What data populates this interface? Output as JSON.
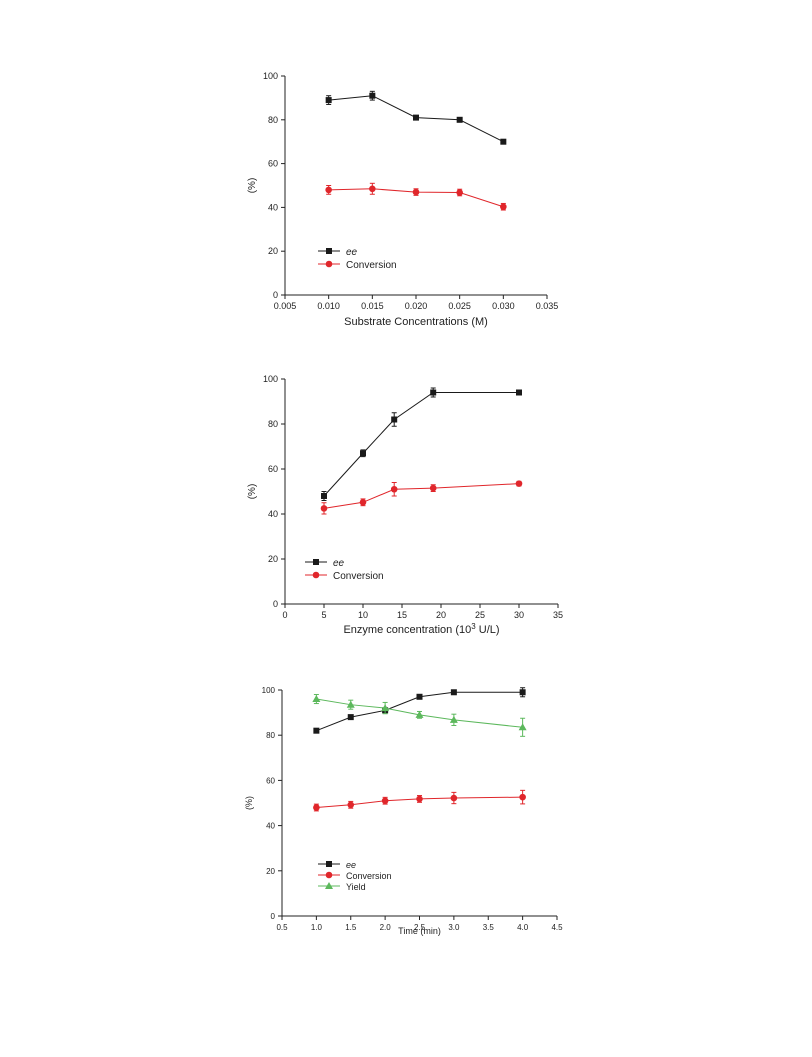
{
  "chart_data": [
    {
      "type": "line",
      "xlabel": "Substrate Concentrations (M)",
      "ylabel": "(%)",
      "xlim": [
        0.005,
        0.035
      ],
      "ylim": [
        0,
        100
      ],
      "xticks": [
        "0.005",
        "0.010",
        "0.015",
        "0.020",
        "0.025",
        "0.030",
        "0.035"
      ],
      "yticks": [
        "0",
        "20",
        "40",
        "60",
        "80",
        "100"
      ],
      "legend_position": "lower-left",
      "grid": false,
      "x": [
        0.01,
        0.015,
        0.02,
        0.025,
        0.03
      ],
      "series": [
        {
          "name": "ee",
          "color": "#1a1a1a",
          "marker": "square",
          "values": [
            89,
            91,
            81,
            80,
            70
          ],
          "errors": [
            2,
            2,
            0.5,
            0.5,
            0.5
          ]
        },
        {
          "name": "Conversion",
          "color": "#e0262b",
          "marker": "circle",
          "values": [
            48,
            48.5,
            47,
            46.8,
            40.3
          ],
          "errors": [
            2,
            2.5,
            1.5,
            1.5,
            1.5
          ]
        }
      ]
    },
    {
      "type": "line",
      "xlabel": "Enzyme concentration (10",
      "xlabel_sup": "3",
      "xlabel_tail": " U/L)",
      "ylabel": "(%)",
      "xlim": [
        0,
        35
      ],
      "ylim": [
        0,
        100
      ],
      "xticks": [
        "0",
        "5",
        "10",
        "15",
        "20",
        "25",
        "30",
        "35"
      ],
      "yticks": [
        "0",
        "20",
        "40",
        "60",
        "80",
        "100"
      ],
      "legend_position": "lower-left",
      "grid": false,
      "x": [
        5,
        10,
        14,
        19,
        30
      ],
      "series": [
        {
          "name": "ee",
          "color": "#1a1a1a",
          "marker": "square",
          "values": [
            48,
            67,
            82,
            94,
            94
          ],
          "errors": [
            2,
            1.5,
            3,
            2,
            0.5
          ]
        },
        {
          "name": "Conversion",
          "color": "#e0262b",
          "marker": "circle",
          "values": [
            42.5,
            45.2,
            51,
            51.5,
            53.5
          ],
          "errors": [
            2.5,
            1.5,
            3,
            1.5,
            1
          ]
        }
      ]
    },
    {
      "type": "line",
      "xlabel": "Time (min)",
      "ylabel": "(%)",
      "xlim": [
        0.5,
        4.5
      ],
      "ylim": [
        0,
        100
      ],
      "xticks": [
        "0.5",
        "1.0",
        "1.5",
        "2.0",
        "2.5",
        "3.0",
        "3.5",
        "4.0",
        "4.5"
      ],
      "yticks": [
        "0",
        "20",
        "40",
        "60",
        "80",
        "100"
      ],
      "legend_position": "lower-left",
      "grid": false,
      "x": [
        1.0,
        1.5,
        2.0,
        2.5,
        3.0,
        4.0
      ],
      "series": [
        {
          "name": "ee",
          "color": "#1a1a1a",
          "marker": "square",
          "values": [
            82,
            88,
            91,
            97,
            99,
            99
          ],
          "errors": [
            0.5,
            0.5,
            0.5,
            0.5,
            0.5,
            2
          ]
        },
        {
          "name": "Conversion",
          "color": "#e0262b",
          "marker": "circle",
          "values": [
            48,
            49.2,
            51,
            51.8,
            52.2,
            52.6
          ],
          "errors": [
            1.5,
            1.5,
            1.5,
            1.5,
            2.5,
            3
          ]
        },
        {
          "name": "Yield",
          "color": "#5cb85c",
          "marker": "triangle",
          "values": [
            96,
            93.5,
            92,
            89,
            86.8,
            83.5
          ],
          "errors": [
            2,
            2,
            2.5,
            1.5,
            2.5,
            4
          ]
        }
      ]
    }
  ]
}
